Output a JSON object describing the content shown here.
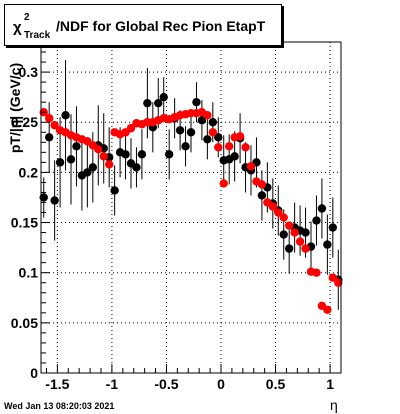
{
  "chart_data": {
    "type": "scatter",
    "title": {
      "symbol": "χ",
      "superscript": "2",
      "subscript": "Track",
      "text": "/NDF for Global Rec Pion EtapT"
    },
    "xlabel": "η",
    "ylabel": "pT/|η| (GeV/c)",
    "xlim": [
      -1.65,
      1.1
    ],
    "ylim": [
      0,
      0.33
    ],
    "xticks": [
      -1.5,
      -1,
      -0.5,
      0,
      0.5,
      1
    ],
    "xtick_labels": [
      "-1.5",
      "-1",
      "-0.5",
      "0",
      "0.5",
      "1"
    ],
    "yticks": [
      0,
      0.05,
      0.1,
      0.15,
      0.2,
      0.25,
      0.3
    ],
    "ytick_labels": [
      "0",
      "0.05",
      "0.1",
      "0.15",
      "0.2",
      "0.25",
      "0.3"
    ],
    "grid": true,
    "timestamp": "Wed Jan 13 08:20:03 2021",
    "series": [
      {
        "color": "#000000",
        "x": [
          -1.625,
          -1.575,
          -1.525,
          -1.475,
          -1.425,
          -1.375,
          -1.325,
          -1.275,
          -1.225,
          -1.175,
          -1.125,
          -1.075,
          -1.025,
          -0.975,
          -0.925,
          -0.875,
          -0.825,
          -0.775,
          -0.725,
          -0.675,
          -0.625,
          -0.575,
          -0.525,
          -0.475,
          -0.425,
          -0.375,
          -0.325,
          -0.275,
          -0.225,
          -0.175,
          -0.125,
          -0.075,
          -0.025,
          0.025,
          0.075,
          0.125,
          0.175,
          0.225,
          0.275,
          0.325,
          0.375,
          0.425,
          0.475,
          0.525,
          0.575,
          0.625,
          0.675,
          0.725,
          0.775,
          0.825,
          0.875,
          0.925,
          0.975,
          1.025,
          1.075
        ],
        "y": [
          0.175,
          0.235,
          0.172,
          0.21,
          0.257,
          0.213,
          0.226,
          0.197,
          0.2,
          0.205,
          0.227,
          0.224,
          0.215,
          0.182,
          0.22,
          0.218,
          0.209,
          0.205,
          0.218,
          0.269,
          0.245,
          0.269,
          0.275,
          0.218,
          0.254,
          0.242,
          0.226,
          0.24,
          0.27,
          0.252,
          0.233,
          0.25,
          0.235,
          0.212,
          0.213,
          0.216,
          0.234,
          0.205,
          0.202,
          0.21,
          0.177,
          0.185,
          0.169,
          0.162,
          0.138,
          0.124,
          0.145,
          0.142,
          0.14,
          0.126,
          0.152,
          0.164,
          0.128,
          0.145,
          0.093
        ],
        "yerr": [
          0.02,
          0.035,
          0.04,
          0.045,
          0.055,
          0.045,
          0.04,
          0.035,
          0.035,
          0.035,
          0.04,
          0.035,
          0.03,
          0.025,
          0.025,
          0.025,
          0.025,
          0.02,
          0.025,
          0.035,
          0.025,
          0.025,
          0.02,
          0.025,
          0.02,
          0.02,
          0.02,
          0.02,
          0.02,
          0.02,
          0.02,
          0.02,
          0.02,
          0.025,
          0.025,
          0.025,
          0.025,
          0.025,
          0.025,
          0.025,
          0.025,
          0.025,
          0.025,
          0.025,
          0.025,
          0.025,
          0.025,
          0.025,
          0.025,
          0.025,
          0.025,
          0.03,
          0.03,
          0.03,
          0.03
        ]
      },
      {
        "color": "#ff0000",
        "x": [
          -1.625,
          -1.575,
          -1.525,
          -1.475,
          -1.425,
          -1.375,
          -1.325,
          -1.275,
          -1.225,
          -1.175,
          -1.125,
          -1.075,
          -1.025,
          -0.975,
          -0.925,
          -0.875,
          -0.825,
          -0.775,
          -0.725,
          -0.675,
          -0.625,
          -0.575,
          -0.525,
          -0.475,
          -0.425,
          -0.375,
          -0.325,
          -0.275,
          -0.225,
          -0.175,
          -0.125,
          -0.075,
          -0.025,
          0.025,
          0.075,
          0.125,
          0.175,
          0.225,
          0.275,
          0.325,
          0.375,
          0.425,
          0.475,
          0.525,
          0.575,
          0.625,
          0.675,
          0.725,
          0.775,
          0.825,
          0.875,
          0.925,
          0.975,
          1.025,
          1.075
        ],
        "y": [
          0.26,
          0.254,
          0.247,
          0.242,
          0.24,
          0.237,
          0.235,
          0.233,
          0.231,
          0.227,
          0.223,
          0.216,
          0.208,
          0.24,
          0.238,
          0.24,
          0.244,
          0.249,
          0.248,
          0.25,
          0.25,
          0.252,
          0.254,
          0.253,
          0.255,
          0.257,
          0.258,
          0.259,
          0.259,
          0.26,
          0.257,
          0.24,
          0.225,
          0.189,
          0.226,
          0.235,
          0.236,
          0.225,
          0.206,
          0.191,
          0.188,
          0.17,
          0.166,
          0.16,
          0.155,
          0.147,
          0.14,
          0.131,
          0.124,
          0.101,
          0.1,
          0.067,
          0.063,
          0.095,
          0.09
        ],
        "yerr": []
      }
    ]
  }
}
